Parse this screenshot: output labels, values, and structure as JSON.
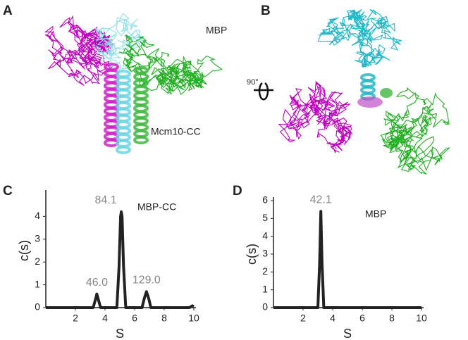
{
  "panels": {
    "a": {
      "label": "A",
      "texts": [
        "MBP",
        "Mcm10-CC"
      ]
    },
    "b": {
      "label": "B",
      "texts": [
        "90°"
      ]
    }
  },
  "chart_data": [
    {
      "type": "line",
      "panel": "C",
      "label": "MBP-CC",
      "x_label": "S",
      "y_label": "c(s)",
      "color": "#222222",
      "x": [
        0,
        3.2,
        3.35,
        3.45,
        3.55,
        3.7,
        4.8,
        4.95,
        5.05,
        5.1,
        5.15,
        5.25,
        5.4,
        6.5,
        6.65,
        6.8,
        6.95,
        7.1,
        9.7,
        9.9,
        10
      ],
      "values": [
        0,
        0,
        0.35,
        0.6,
        0.35,
        0,
        0,
        1.8,
        4.0,
        4.2,
        4.0,
        1.8,
        0,
        0,
        0.4,
        0.7,
        0.4,
        0,
        0,
        0.08,
        0.05
      ],
      "annotations": [
        "46.0",
        "84.1",
        "129.0"
      ],
      "xlim": [
        0,
        10
      ],
      "xticks": [
        2,
        4,
        6,
        8,
        10
      ],
      "ylim": [
        0,
        5
      ],
      "yticks": [
        0,
        1,
        2,
        3,
        4
      ]
    },
    {
      "type": "line",
      "panel": "D",
      "label": "MBP",
      "x_label": "S",
      "y_label": "c(s)",
      "color": "#222222",
      "x": [
        0,
        3.0,
        3.12,
        3.2,
        3.28,
        3.4,
        10
      ],
      "values": [
        0,
        0,
        2.5,
        5.4,
        2.5,
        0,
        0
      ],
      "annotations": [
        "42.1"
      ],
      "xlim": [
        0,
        10
      ],
      "xticks": [
        2,
        4,
        6,
        8,
        10
      ],
      "ylim": [
        0,
        6
      ],
      "yticks": [
        0,
        1,
        2,
        3,
        4,
        5,
        6
      ]
    }
  ]
}
